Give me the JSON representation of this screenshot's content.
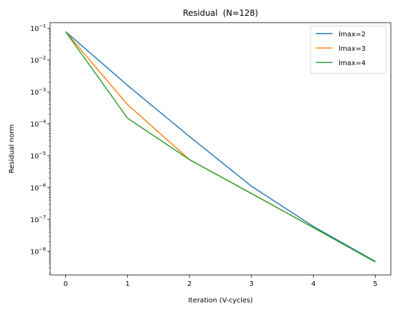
{
  "chart_data": {
    "type": "line",
    "title": "Residual  (N=128)",
    "xlabel": "Iteration (V-cycles)",
    "ylabel": "Residual norm",
    "yscale": "log",
    "xlim": [
      -0.25,
      5.25
    ],
    "ylim": [
      1.8e-09,
      0.15
    ],
    "x": [
      0,
      1,
      2,
      3,
      4,
      5
    ],
    "xticks": [
      "0",
      "1",
      "2",
      "3",
      "4",
      "5"
    ],
    "yticks": [
      {
        "base": "10",
        "exp": "−1",
        "value": 0.1
      },
      {
        "base": "10",
        "exp": "−2",
        "value": 0.01
      },
      {
        "base": "10",
        "exp": "−3",
        "value": 0.001
      },
      {
        "base": "10",
        "exp": "−4",
        "value": 0.0001
      },
      {
        "base": "10",
        "exp": "−5",
        "value": 1e-05
      },
      {
        "base": "10",
        "exp": "−6",
        "value": 1e-06
      },
      {
        "base": "10",
        "exp": "−7",
        "value": 1e-07
      },
      {
        "base": "10",
        "exp": "−8",
        "value": 1e-08
      }
    ],
    "series": [
      {
        "name": "lmax=2",
        "color": "#1f77b4",
        "values": [
          0.078,
          0.0016,
          4e-05,
          1.1e-06,
          6e-08,
          4.8e-09
        ]
      },
      {
        "name": "lmax=3",
        "color": "#ff7f0e",
        "values": [
          0.078,
          0.0004,
          7.5e-06,
          6.5e-07,
          5.5e-08,
          4.6e-09
        ]
      },
      {
        "name": "lmax=4",
        "color": "#2ca02c",
        "values": [
          0.078,
          0.00015,
          7.5e-06,
          6.5e-07,
          5.5e-08,
          4.6e-09
        ]
      }
    ],
    "grid": false,
    "legend": "upper right"
  }
}
